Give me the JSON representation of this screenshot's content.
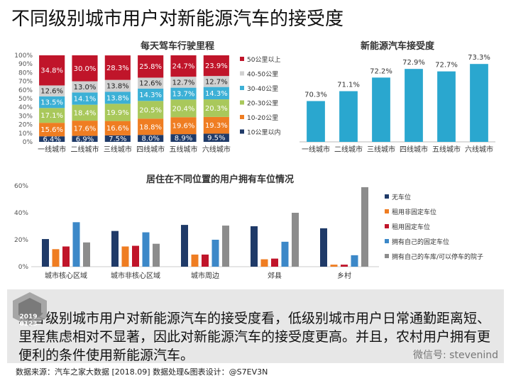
{
  "page": {
    "title": "不同级别城市用户对新能源汽车的接受度",
    "summary": "从各级别城市用户对新能源汽车的接受度看，低级别城市用户日常通勤距离短、里程焦虑相对不显著，因此对新能源汽车的接受度更高。并且，农村用户拥有更便利的条件使用新能源汽车。",
    "source": "数据来源：汽车之家大数据 [2018.09]     数据处理&图表设计：@S7EV3N",
    "wechat": "微信号: stevenind",
    "logo_year": "2019",
    "logo_date": "0123"
  },
  "chart_data": [
    {
      "type": "bar",
      "stacked": true,
      "title": "每天驾车行驶里程",
      "categories": [
        "一线城市",
        "二线城市",
        "三线城市",
        "四线城市",
        "五线城市",
        "六线城市"
      ],
      "ylim": [
        0,
        100
      ],
      "yticks": [
        "0%",
        "10%",
        "20%",
        "30%",
        "40%",
        "50%",
        "60%",
        "70%",
        "80%",
        "90%",
        "100%"
      ],
      "legend_position": "right",
      "series": [
        {
          "name": "10公里以内",
          "color": "#1f3a68",
          "values": [
            6.4,
            6.9,
            7.5,
            8.0,
            8.9,
            9.5
          ],
          "labels": [
            "6.4%",
            "6.9%",
            "7.5%",
            "8.0%",
            "8.9%",
            "9.5%"
          ]
        },
        {
          "name": "10-20公里",
          "color": "#ef7d22",
          "values": [
            15.6,
            17.6,
            16.6,
            18.8,
            19.6,
            19.3
          ],
          "labels": [
            "15.6%",
            "17.6%",
            "16.6%",
            "18.8%",
            "19.6%",
            "19.3%"
          ]
        },
        {
          "name": "20-30公里",
          "color": "#a9c85b",
          "values": [
            17.1,
            18.4,
            19.9,
            20.5,
            20.4,
            20.3
          ],
          "labels": [
            "17.1%",
            "18.4%",
            "19.9%",
            "20.5%",
            "20.4%",
            "20.3%"
          ]
        },
        {
          "name": "30-40公里",
          "color": "#3cb0d6",
          "values": [
            13.5,
            14.1,
            13.8,
            14.3,
            13.7,
            14.3
          ],
          "labels": [
            "13.5%",
            "14.1%",
            "13.8%",
            "14.3%",
            "13.7%",
            "14.3%"
          ]
        },
        {
          "name": "40-50公里",
          "color": "#d0d0d0",
          "values": [
            12.6,
            13.0,
            13.8,
            12.6,
            12.7,
            12.7
          ],
          "labels": [
            "12.6%",
            "13.0%",
            "13.8%",
            "12.6%",
            "12.7%",
            "12.7%"
          ]
        },
        {
          "name": "50公里以上",
          "color": "#c0152a",
          "values": [
            34.8,
            30.0,
            28.3,
            25.8,
            24.7,
            23.9
          ],
          "labels": [
            "34.8%",
            "30.0%",
            "28.3%",
            "25.8%",
            "24.7%",
            "23.9%"
          ]
        }
      ]
    },
    {
      "type": "bar",
      "title": "新能源汽车接受度",
      "categories": [
        "一线城市",
        "二线城市",
        "三线城市",
        "四线城市",
        "五线城市",
        "六线城市"
      ],
      "values": [
        70.3,
        71.1,
        72.2,
        72.9,
        72.7,
        73.3
      ],
      "labels": [
        "70.3%",
        "71.1%",
        "72.2%",
        "72.9%",
        "72.7%",
        "73.3%"
      ],
      "ylim": [
        67,
        74
      ],
      "color": "#2aa7cf"
    },
    {
      "type": "bar",
      "title": "居住在不同位置的用户拥有车位情况",
      "categories": [
        "城市核心区域",
        "城市非核心区域",
        "城市周边",
        "郊县",
        "乡村"
      ],
      "ylim": [
        0,
        60
      ],
      "yticks": [
        "0%",
        "20%",
        "40%",
        "60%"
      ],
      "legend_position": "right",
      "series": [
        {
          "name": "无车位",
          "color": "#1f3a68",
          "values": [
            20.5,
            26.5,
            31,
            30,
            28.5
          ]
        },
        {
          "name": "租用非固定车位",
          "color": "#ef7d22",
          "values": [
            13,
            15,
            9,
            5.5,
            1.5
          ]
        },
        {
          "name": "租用固定车位",
          "color": "#c0152a",
          "values": [
            15,
            15.5,
            9,
            6,
            1.5
          ]
        },
        {
          "name": "拥有自己的固定车位",
          "color": "#3c88c8",
          "values": [
            33,
            25.5,
            20,
            18.5,
            8.5
          ]
        },
        {
          "name": "拥有自己的车库/可以停车的院子",
          "color": "#8c8c8c",
          "values": [
            18,
            17,
            30.5,
            40,
            59
          ]
        }
      ]
    }
  ]
}
